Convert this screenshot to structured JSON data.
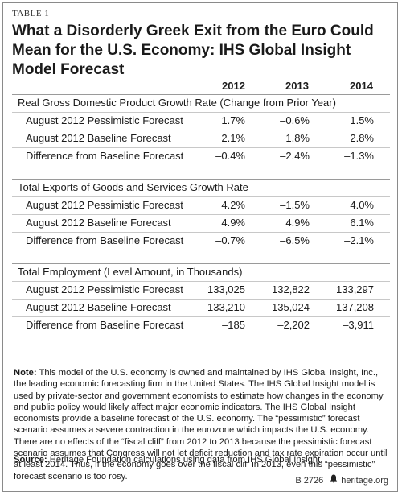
{
  "table_label": "TABLE 1",
  "title": "What a Disorderly Greek Exit from the Euro Could Mean for the U.S. Economy: IHS Global Insight Model Forecast",
  "years": [
    "2012",
    "2013",
    "2014"
  ],
  "sections": [
    {
      "title": "Real Gross Domestic Product Growth Rate (Change from Prior Year)",
      "rows": [
        {
          "label": "August 2012 Pessimistic Forecast",
          "values": [
            "1.7%",
            "–0.6%",
            "1.5%"
          ]
        },
        {
          "label": "August 2012 Baseline Forecast",
          "values": [
            "2.1%",
            "1.8%",
            "2.8%"
          ]
        },
        {
          "label": "Difference from Baseline Forecast",
          "values": [
            "–0.4%",
            "–2.4%",
            "–1.3%"
          ]
        }
      ]
    },
    {
      "title": "Total Exports of Goods and Services Growth Rate",
      "rows": [
        {
          "label": "August 2012 Pessimistic Forecast",
          "values": [
            "4.2%",
            "–1.5%",
            "4.0%"
          ]
        },
        {
          "label": "August 2012 Baseline Forecast",
          "values": [
            "4.9%",
            "4.9%",
            "6.1%"
          ]
        },
        {
          "label": "Difference from Baseline Forecast",
          "values": [
            "–0.7%",
            "–6.5%",
            "–2.1%"
          ]
        }
      ]
    },
    {
      "title": "Total Employment (Level Amount, in Thousands)",
      "rows": [
        {
          "label": "August 2012 Pessimistic Forecast",
          "values": [
            "133,025",
            "132,822",
            "133,297"
          ]
        },
        {
          "label": "August 2012 Baseline Forecast",
          "values": [
            "133,210",
            "135,024",
            "137,208"
          ]
        },
        {
          "label": "Difference from Baseline Forecast",
          "values": [
            "–185",
            "–2,202",
            "–3,911"
          ]
        }
      ]
    }
  ],
  "note": {
    "label": "Note:",
    "text": "This model of the U.S. economy is owned and maintained by IHS Global Insight, Inc., the leading economic forecasting firm in the United States. The IHS Global Insight model is used by private-sector and government economists to estimate how changes in the economy and public policy would likely affect major economic indicators. The IHS Global Insight economists provide a baseline forecast of the U.S. economy. The “pessimistic” forecast scenario assumes a severe contraction in the eurozone which impacts the U.S. economy. There are no effects of the “fiscal cliff” from 2012 to 2013 because the pessimistic forecast scenario assumes that Congress will not let deficit reduction and tax rate expiration occur until at least 2014. Thus, if the economy goes over the fiscal cliff in 2013, even this “pessimistic” forecast scenario is too rosy."
  },
  "source": {
    "label": "Source:",
    "text": "Heritage Foundation calculations using data from IHS Global Insight."
  },
  "footer": {
    "code": "B 2726",
    "icon": "liberty-bell-icon",
    "site": "heritage.org"
  }
}
